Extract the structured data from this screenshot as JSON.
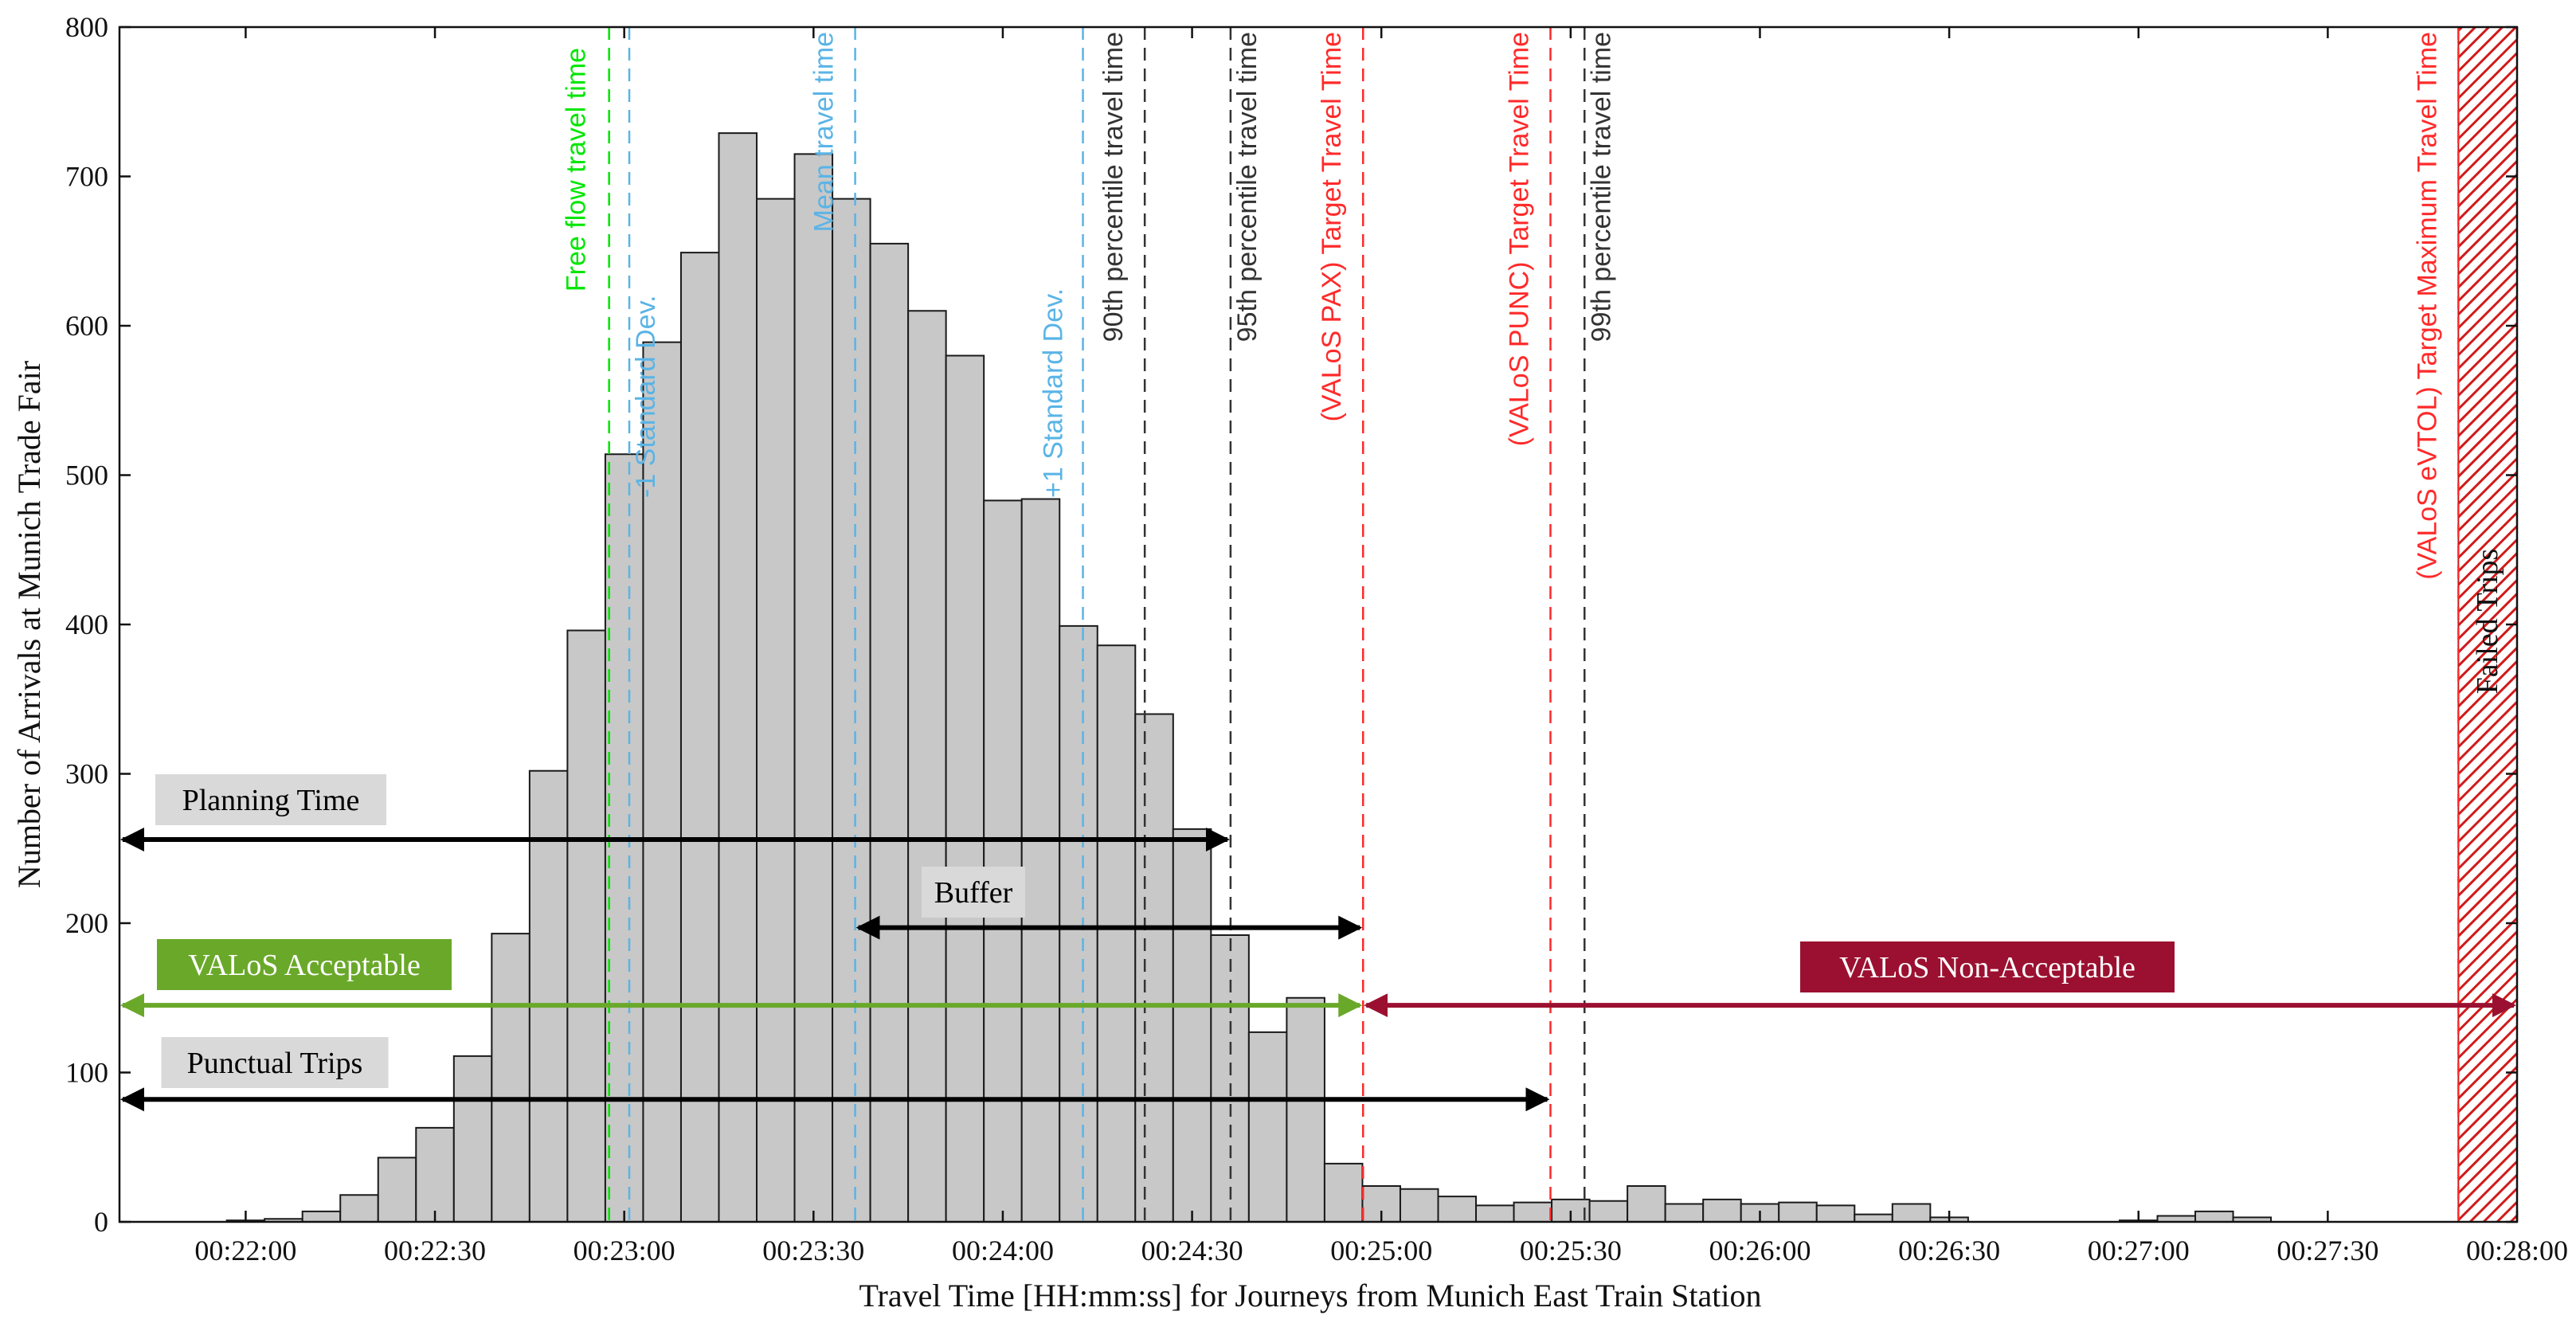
{
  "chart_data": {
    "type": "bar",
    "xlabel": "Travel Time [HH:mm:ss] for Journeys from Munich East Train Station",
    "ylabel": "Number of Arrivals at Munich Trade Fair",
    "xlim_seconds": [
      1300,
      1680
    ],
    "ylim": [
      0,
      800
    ],
    "bin_width_seconds": 6,
    "x_ticks": [
      {
        "t": 1320,
        "label": "00:22:00"
      },
      {
        "t": 1350,
        "label": "00:22:30"
      },
      {
        "t": 1380,
        "label": "00:23:00"
      },
      {
        "t": 1410,
        "label": "00:23:30"
      },
      {
        "t": 1440,
        "label": "00:24:00"
      },
      {
        "t": 1470,
        "label": "00:24:30"
      },
      {
        "t": 1500,
        "label": "00:25:00"
      },
      {
        "t": 1530,
        "label": "00:25:30"
      },
      {
        "t": 1560,
        "label": "00:26:00"
      },
      {
        "t": 1590,
        "label": "00:26:30"
      },
      {
        "t": 1620,
        "label": "00:27:00"
      },
      {
        "t": 1650,
        "label": "00:27:30"
      },
      {
        "t": 1680,
        "label": "00:28:00"
      }
    ],
    "y_ticks": [
      "0",
      "100",
      "200",
      "300",
      "400",
      "500",
      "600",
      "700",
      "800"
    ],
    "bins": [
      {
        "start": 1317,
        "count": 1
      },
      {
        "start": 1323,
        "count": 2
      },
      {
        "start": 1329,
        "count": 7
      },
      {
        "start": 1335,
        "count": 18
      },
      {
        "start": 1341,
        "count": 43
      },
      {
        "start": 1347,
        "count": 63
      },
      {
        "start": 1353,
        "count": 111
      },
      {
        "start": 1359,
        "count": 193
      },
      {
        "start": 1365,
        "count": 302
      },
      {
        "start": 1371,
        "count": 396
      },
      {
        "start": 1377,
        "count": 514
      },
      {
        "start": 1383,
        "count": 589
      },
      {
        "start": 1389,
        "count": 649
      },
      {
        "start": 1395,
        "count": 729
      },
      {
        "start": 1401,
        "count": 685
      },
      {
        "start": 1407,
        "count": 715
      },
      {
        "start": 1413,
        "count": 685
      },
      {
        "start": 1419,
        "count": 655
      },
      {
        "start": 1425,
        "count": 610
      },
      {
        "start": 1431,
        "count": 580
      },
      {
        "start": 1437,
        "count": 483
      },
      {
        "start": 1443,
        "count": 484
      },
      {
        "start": 1449,
        "count": 399
      },
      {
        "start": 1455,
        "count": 386
      },
      {
        "start": 1461,
        "count": 340
      },
      {
        "start": 1467,
        "count": 263
      },
      {
        "start": 1473,
        "count": 192
      },
      {
        "start": 1479,
        "count": 127
      },
      {
        "start": 1485,
        "count": 150
      },
      {
        "start": 1491,
        "count": 39
      },
      {
        "start": 1497,
        "count": 24
      },
      {
        "start": 1503,
        "count": 22
      },
      {
        "start": 1509,
        "count": 17
      },
      {
        "start": 1515,
        "count": 11
      },
      {
        "start": 1521,
        "count": 13
      },
      {
        "start": 1527,
        "count": 15
      },
      {
        "start": 1533,
        "count": 14
      },
      {
        "start": 1539,
        "count": 24
      },
      {
        "start": 1545,
        "count": 12
      },
      {
        "start": 1551,
        "count": 15
      },
      {
        "start": 1557,
        "count": 12
      },
      {
        "start": 1563,
        "count": 13
      },
      {
        "start": 1569,
        "count": 11
      },
      {
        "start": 1575,
        "count": 5
      },
      {
        "start": 1581,
        "count": 12
      },
      {
        "start": 1587,
        "count": 3
      },
      {
        "start": 1617,
        "count": 1
      },
      {
        "start": 1623,
        "count": 4
      },
      {
        "start": 1629,
        "count": 7
      },
      {
        "start": 1635,
        "count": 3
      }
    ],
    "reference_lines": [
      {
        "name": "free-flow",
        "label": "Free flow travel time",
        "t": 1377.6,
        "color": "#00e600"
      },
      {
        "name": "minus-1-std",
        "label": "-1 Standard Dev.",
        "t": 1380.8,
        "color": "#5ab4e6"
      },
      {
        "name": "mean",
        "label": "Mean travel time",
        "t": 1416.6,
        "color": "#5ab4e6"
      },
      {
        "name": "plus-1-std",
        "label": "+1 Standard Dev.",
        "t": 1452.7,
        "color": "#5ab4e6"
      },
      {
        "name": "p90",
        "label": "90th percentile travel time",
        "t": 1462.5,
        "color": "#333333"
      },
      {
        "name": "p95",
        "label": "95th percentile travel time",
        "t": 1476.1,
        "color": "#333333"
      },
      {
        "name": "valos-pax",
        "label": "(VALoS PAX) Target Travel Time",
        "t": 1497.1,
        "color": "#ff2a2a"
      },
      {
        "name": "valos-punc",
        "label": "(VALoS PUNC) Target Travel Time",
        "t": 1526.8,
        "color": "#ff2a2a"
      },
      {
        "name": "p99",
        "label": "99th percentile travel time",
        "t": 1532.2,
        "color": "#333333"
      },
      {
        "name": "valos-evtol",
        "label": "(VALoS eVTOL) Target Maximum Travel Time",
        "t": 1670.7,
        "color": "#ff2a2a"
      }
    ],
    "failed_trips": {
      "label": "Failed Trips",
      "t_start": 1670.7,
      "t_end": 1680,
      "color": "#e02020"
    },
    "ranges": [
      {
        "name": "planning-time",
        "label": "Planning Time",
        "t_start": 1300,
        "t_end": 1476.1,
        "y": 256,
        "color": "#000000",
        "box_color": "#d9d9d9",
        "text_color": "#000000"
      },
      {
        "name": "buffer",
        "label": "Buffer",
        "t_start": 1416.6,
        "t_end": 1497.1,
        "y": 197,
        "color": "#000000",
        "box_color": "#d9d9d9",
        "text_color": "#000000"
      },
      {
        "name": "valos-acceptable",
        "label": "VALoS Acceptable",
        "t_start": 1300,
        "t_end": 1497.1,
        "y": 145,
        "color": "#6aa82a",
        "box_color": "#6aa82a",
        "text_color": "#ffffff"
      },
      {
        "name": "valos-non-acceptable",
        "label": "VALoS Non-Acceptable",
        "t_start": 1497.1,
        "t_end": 1680,
        "y": 145,
        "color": "#9b1030",
        "box_color": "#9b1030",
        "text_color": "#ffffff"
      },
      {
        "name": "punctual-trips",
        "label": "Punctual Trips",
        "t_start": 1300,
        "t_end": 1526.8,
        "y": 82,
        "color": "#000000",
        "box_color": "#d9d9d9",
        "text_color": "#000000"
      }
    ]
  }
}
